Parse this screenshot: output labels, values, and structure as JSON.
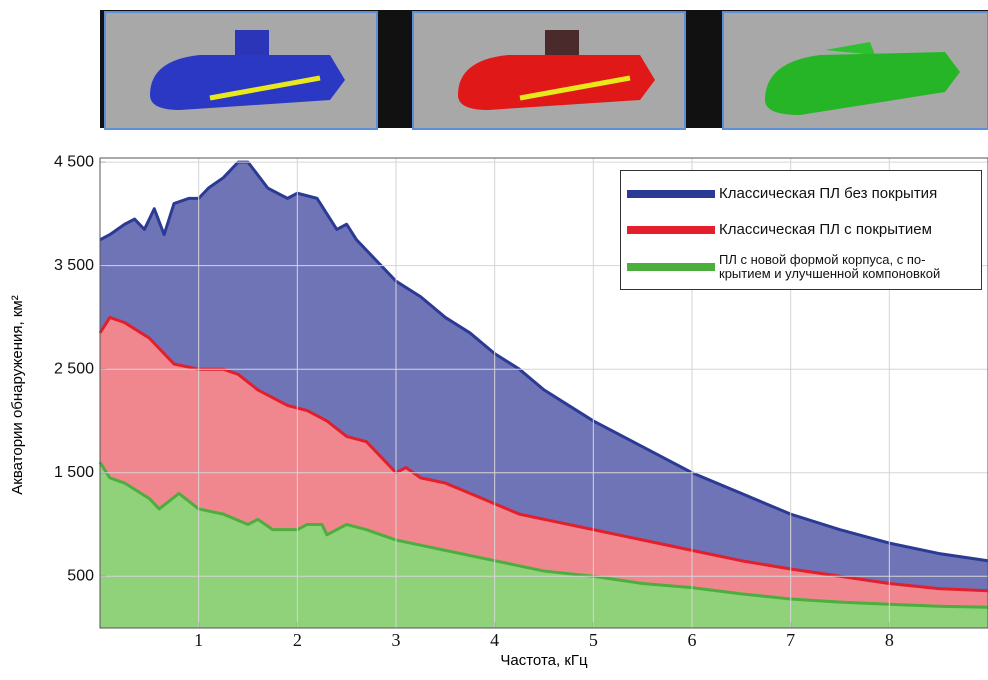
{
  "chart_data": {
    "type": "area",
    "xlabel": "Частота, кГц",
    "ylabel": "Акватории обнаружения, км²",
    "xlim": [
      0,
      9
    ],
    "xticks": [
      1,
      2,
      3,
      4,
      5,
      6,
      7,
      8
    ],
    "ylim": [
      0,
      4540
    ],
    "yticks": [
      {
        "value": 500,
        "label": "500"
      },
      {
        "value": 1500,
        "label": "1 500"
      },
      {
        "value": 2500,
        "label": "2 500"
      },
      {
        "value": 3500,
        "label": "3 500"
      },
      {
        "value": 4500,
        "label": "4 500"
      }
    ],
    "grid": true,
    "legend": "upper right",
    "series": [
      {
        "name": "Классическая ПЛ без покрытия",
        "color": "#2b3a94",
        "fill": "#6f74b6",
        "x": [
          0,
          0.1,
          0.25,
          0.35,
          0.45,
          0.55,
          0.65,
          0.75,
          0.9,
          1.0,
          1.1,
          1.25,
          1.4,
          1.5,
          1.7,
          1.9,
          2.0,
          2.2,
          2.4,
          2.5,
          2.6,
          2.8,
          3.0,
          3.25,
          3.5,
          3.75,
          4.0,
          4.25,
          4.5,
          4.75,
          5.0,
          5.5,
          6.0,
          6.5,
          7.0,
          7.5,
          8.0,
          8.5,
          9.0
        ],
        "values": [
          3750,
          3800,
          3900,
          3950,
          3850,
          4050,
          3800,
          4100,
          4150,
          4150,
          4250,
          4350,
          4500,
          4500,
          4250,
          4150,
          4200,
          4150,
          3850,
          3900,
          3750,
          3550,
          3350,
          3200,
          3000,
          2850,
          2650,
          2500,
          2300,
          2150,
          2000,
          1750,
          1500,
          1300,
          1100,
          950,
          820,
          720,
          650
        ]
      },
      {
        "name": "Классическая ПЛ с покрытием",
        "color": "#e31e2d",
        "fill": "#f0878e",
        "x": [
          0,
          0.1,
          0.25,
          0.5,
          0.75,
          1.0,
          1.25,
          1.4,
          1.6,
          1.9,
          2.1,
          2.3,
          2.5,
          2.7,
          2.8,
          3.0,
          3.1,
          3.25,
          3.5,
          3.75,
          4.0,
          4.25,
          4.5,
          5.0,
          5.5,
          6.0,
          6.5,
          7.0,
          7.5,
          8.0,
          8.5,
          9.0
        ],
        "values": [
          2850,
          3000,
          2950,
          2800,
          2550,
          2500,
          2500,
          2450,
          2300,
          2150,
          2100,
          2000,
          1850,
          1800,
          1700,
          1500,
          1550,
          1450,
          1400,
          1300,
          1200,
          1100,
          1050,
          950,
          850,
          750,
          650,
          570,
          500,
          430,
          380,
          360
        ]
      },
      {
        "name": "ПЛ с новой формой корпуса, с по-\nкрытием и улучшенной компоновкой",
        "color": "#4cae3c",
        "fill": "#8fd27a",
        "x": [
          0,
          0.1,
          0.25,
          0.5,
          0.6,
          0.8,
          1.0,
          1.25,
          1.5,
          1.6,
          1.75,
          2.0,
          2.1,
          2.25,
          2.3,
          2.5,
          2.7,
          3.0,
          3.25,
          3.5,
          4.0,
          4.5,
          5.0,
          5.5,
          6.0,
          6.5,
          7.0,
          7.5,
          8.0,
          8.5,
          9.0
        ],
        "values": [
          1600,
          1450,
          1400,
          1250,
          1150,
          1300,
          1150,
          1100,
          1000,
          1050,
          950,
          950,
          1000,
          1000,
          900,
          1000,
          950,
          850,
          800,
          750,
          650,
          550,
          500,
          430,
          390,
          330,
          280,
          250,
          230,
          210,
          200
        ]
      }
    ]
  }
}
